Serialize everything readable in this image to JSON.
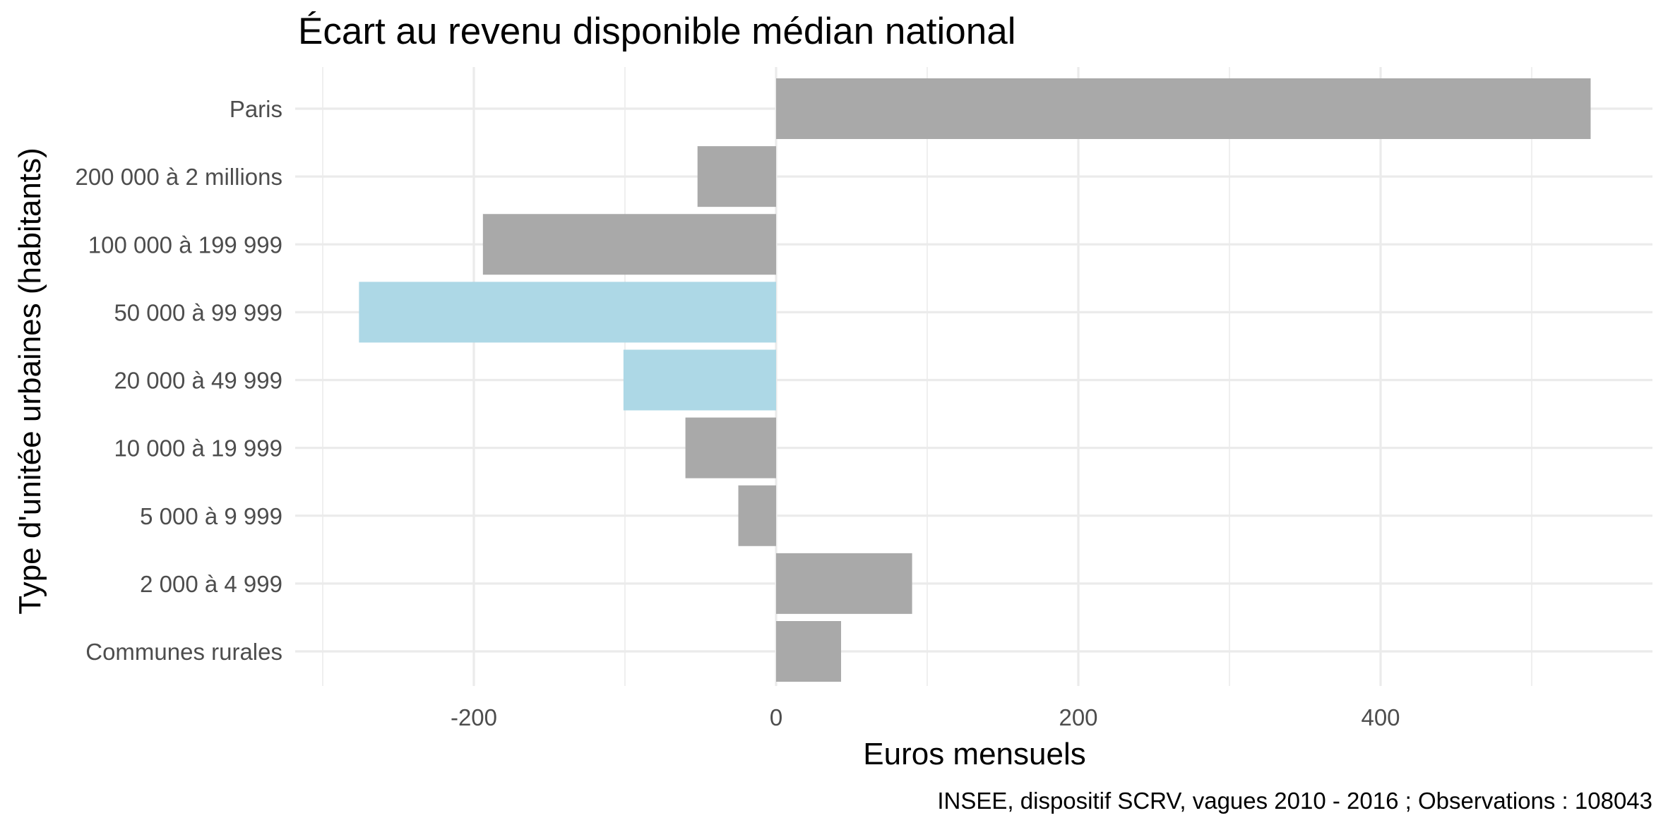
{
  "chart_data": {
    "type": "bar",
    "orientation": "horizontal",
    "title": "Écart au revenu disponible médian national",
    "xlabel": "Euros mensuels",
    "ylabel": "Type d'unitée urbaines (habitants)",
    "caption": "INSEE, dispositif SCRV, vagues 2010 - 2016 ; Observations : 108043",
    "categories": [
      "Paris",
      "200 000 à 2 millions",
      "100 000 à 199 999",
      "50 000 à 99 999",
      "20 000 à 49 999",
      "10 000 à 19 999",
      "5 000 à 9 999",
      "2 000 à 4 999",
      "Communes rurales"
    ],
    "values": [
      539,
      -52,
      -194,
      -276,
      -101,
      -60,
      -25,
      90,
      43
    ],
    "highlighted": [
      false,
      false,
      false,
      true,
      true,
      false,
      false,
      false,
      false
    ],
    "colors": {
      "bar": "#a9a9a9",
      "highlight": "#add8e6",
      "grid": "#ebebeb"
    },
    "xlim": [
      -300,
      580
    ],
    "xticks": [
      -200,
      0,
      200,
      400
    ],
    "xtick_labels": [
      "-200",
      "0",
      "200",
      "400"
    ],
    "grid": true,
    "legend": "none"
  }
}
